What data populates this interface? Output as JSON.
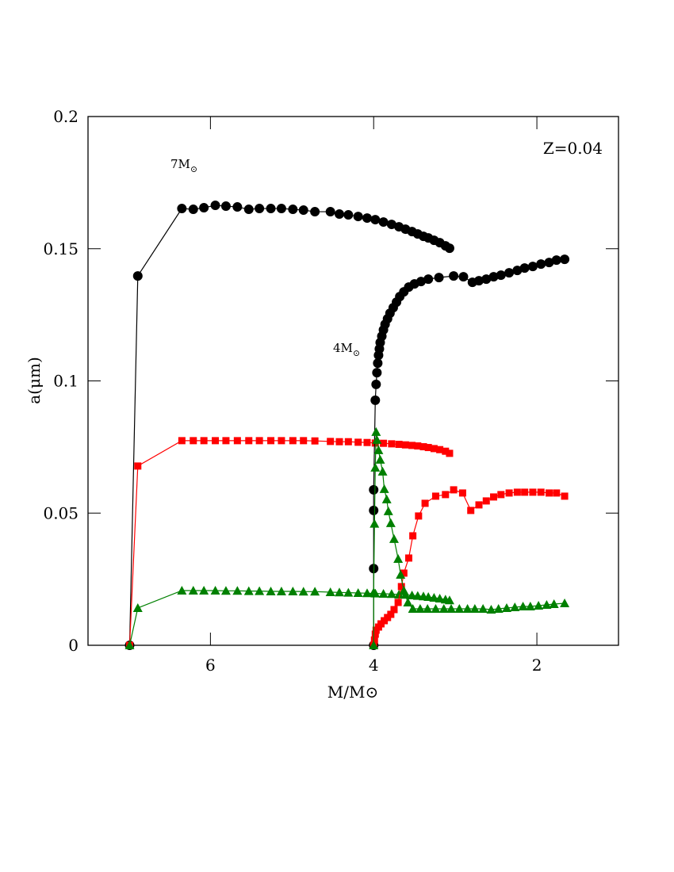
{
  "chart_data": {
    "type": "line",
    "xlabel": "M/M⊙",
    "ylabel": "a(μm)",
    "annotations": [
      {
        "text": "7M",
        "subscript": "⊙"
      },
      {
        "text": "4M",
        "subscript": "⊙"
      },
      {
        "text": "Z=0.04"
      }
    ],
    "xlim": [
      7.5,
      1
    ],
    "ylim": [
      0,
      0.2
    ],
    "xticks": [
      6,
      4,
      2
    ],
    "yticks": [
      0,
      0.05,
      0.1,
      0.15,
      0.2
    ],
    "series": [
      {
        "color": "#000000",
        "marker": "circle",
        "x": [
          6.99,
          6.89,
          6.35,
          6.21,
          6.08,
          5.94,
          5.81,
          5.67,
          5.53,
          5.4,
          5.26,
          5.13,
          4.99,
          4.86,
          4.72,
          4.53,
          4.42,
          4.31,
          4.19,
          4.08,
          3.98,
          3.88,
          3.78,
          3.69,
          3.61,
          3.53,
          3.46,
          3.39,
          3.33,
          3.26,
          3.19,
          3.12,
          3.07
        ],
        "values": [
          0,
          0.1397,
          0.1652,
          0.1649,
          0.1655,
          0.1664,
          0.1661,
          0.1658,
          0.1649,
          0.1652,
          0.1652,
          0.1652,
          0.1649,
          0.1646,
          0.164,
          0.164,
          0.1631,
          0.1628,
          0.1622,
          0.1616,
          0.161,
          0.1601,
          0.1592,
          0.1583,
          0.1574,
          0.1565,
          0.1556,
          0.1547,
          0.1541,
          0.1532,
          0.1523,
          0.1511,
          0.1502
        ]
      },
      {
        "color": "#ff0000",
        "marker": "square",
        "x": [
          6.99,
          6.89,
          6.35,
          6.21,
          6.08,
          5.94,
          5.81,
          5.67,
          5.53,
          5.4,
          5.26,
          5.13,
          4.99,
          4.86,
          4.72,
          4.53,
          4.42,
          4.31,
          4.19,
          4.08,
          3.98,
          3.88,
          3.78,
          3.69,
          3.61,
          3.53,
          3.46,
          3.39,
          3.33,
          3.26,
          3.19,
          3.12,
          3.07
        ],
        "values": [
          0,
          0.0678,
          0.0774,
          0.0774,
          0.0774,
          0.0774,
          0.0774,
          0.0774,
          0.0774,
          0.0774,
          0.0774,
          0.0774,
          0.0774,
          0.0774,
          0.0773,
          0.0771,
          0.077,
          0.077,
          0.0768,
          0.0767,
          0.0765,
          0.0764,
          0.0762,
          0.076,
          0.0758,
          0.0756,
          0.0754,
          0.0751,
          0.0748,
          0.0744,
          0.074,
          0.0734,
          0.0726
        ]
      },
      {
        "color": "#008000",
        "marker": "triangle",
        "x": [
          6.99,
          6.89,
          6.35,
          6.21,
          6.08,
          5.94,
          5.81,
          5.67,
          5.53,
          5.4,
          5.26,
          5.13,
          4.99,
          4.86,
          4.72,
          4.53,
          4.42,
          4.31,
          4.19,
          4.08,
          3.98,
          3.88,
          3.78,
          3.69,
          3.61,
          3.53,
          3.46,
          3.39,
          3.33,
          3.26,
          3.19,
          3.12,
          3.07
        ],
        "values": [
          0,
          0.0141,
          0.0207,
          0.0207,
          0.0207,
          0.0207,
          0.0206,
          0.0206,
          0.0205,
          0.0205,
          0.0204,
          0.0204,
          0.0204,
          0.0203,
          0.0203,
          0.0201,
          0.02,
          0.0199,
          0.0198,
          0.0197,
          0.0196,
          0.0195,
          0.0194,
          0.0192,
          0.0191,
          0.0189,
          0.0187,
          0.0185,
          0.0183,
          0.018,
          0.0177,
          0.0173,
          0.017
        ]
      },
      {
        "color": "#000000",
        "marker": "circle",
        "x": [
          4.0,
          4.0,
          4.0,
          4.0,
          3.98,
          3.97,
          3.96,
          3.95,
          3.94,
          3.93,
          3.92,
          3.9,
          3.88,
          3.86,
          3.83,
          3.8,
          3.76,
          3.72,
          3.68,
          3.63,
          3.57,
          3.5,
          3.42,
          3.33,
          3.2,
          3.02,
          2.9,
          2.79,
          2.71,
          2.62,
          2.53,
          2.44,
          2.34,
          2.24,
          2.15,
          2.05,
          1.95,
          1.85,
          1.76,
          1.66
        ],
        "values": [
          0,
          0.029,
          0.051,
          0.0588,
          0.0927,
          0.0987,
          0.1031,
          0.1067,
          0.1097,
          0.1121,
          0.1145,
          0.1169,
          0.1193,
          0.1214,
          0.1235,
          0.1256,
          0.1277,
          0.1298,
          0.1319,
          0.1337,
          0.1355,
          0.1367,
          0.1376,
          0.1385,
          0.1391,
          0.1397,
          0.1394,
          0.1373,
          0.1379,
          0.1385,
          0.1394,
          0.14,
          0.1409,
          0.1418,
          0.1427,
          0.1433,
          0.1442,
          0.1448,
          0.1457,
          0.146
        ]
      },
      {
        "color": "#ff0000",
        "marker": "square",
        "x": [
          4.0,
          3.99,
          3.98,
          3.97,
          3.94,
          3.91,
          3.87,
          3.83,
          3.79,
          3.75,
          3.7,
          3.66,
          3.63,
          3.57,
          3.52,
          3.45,
          3.37,
          3.24,
          3.12,
          3.02,
          2.91,
          2.81,
          2.71,
          2.62,
          2.53,
          2.44,
          2.34,
          2.24,
          2.15,
          2.05,
          1.95,
          1.85,
          1.76,
          1.66
        ],
        "values": [
          0,
          0.002,
          0.0042,
          0.0057,
          0.0069,
          0.0081,
          0.0093,
          0.0105,
          0.0117,
          0.0135,
          0.0162,
          0.0222,
          0.0273,
          0.033,
          0.0414,
          0.0489,
          0.0537,
          0.0564,
          0.057,
          0.0588,
          0.0576,
          0.051,
          0.0531,
          0.0546,
          0.0561,
          0.057,
          0.0576,
          0.0579,
          0.0579,
          0.0579,
          0.0579,
          0.0576,
          0.0576,
          0.0564
        ]
      },
      {
        "color": "#008000",
        "marker": "triangle",
        "x": [
          4.0,
          4.0,
          3.99,
          3.98,
          3.97,
          3.96,
          3.94,
          3.92,
          3.89,
          3.87,
          3.84,
          3.82,
          3.79,
          3.75,
          3.7,
          3.67,
          3.63,
          3.58,
          3.52,
          3.43,
          3.34,
          3.24,
          3.14,
          3.05,
          2.95,
          2.85,
          2.76,
          2.66,
          2.56,
          2.47,
          2.37,
          2.27,
          2.17,
          2.08,
          1.98,
          1.88,
          1.79,
          1.66
        ],
        "values": [
          0,
          0.02,
          0.046,
          0.0672,
          0.0807,
          0.0777,
          0.0738,
          0.0702,
          0.0657,
          0.0591,
          0.0552,
          0.0507,
          0.0462,
          0.0402,
          0.0327,
          0.0267,
          0.0207,
          0.0162,
          0.0138,
          0.0138,
          0.0138,
          0.0138,
          0.0138,
          0.0138,
          0.0138,
          0.0138,
          0.0138,
          0.0138,
          0.0135,
          0.0138,
          0.0141,
          0.0144,
          0.0147,
          0.0147,
          0.015,
          0.0153,
          0.0156,
          0.0159
        ]
      }
    ]
  }
}
